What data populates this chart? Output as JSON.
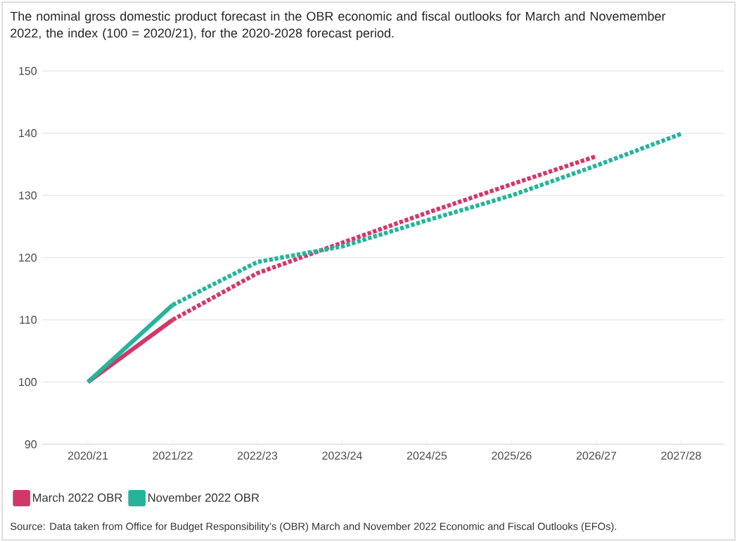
{
  "chart_data": {
    "type": "line",
    "title": "The nominal gross domestic product forecast in the OBR economic and fiscal outlooks for March and Novemember 2022, the index (100 = 2020/21), for the 2020-2028 forecast period.",
    "categories": [
      "2020/21",
      "2021/22",
      "2022/23",
      "2023/24",
      "2024/25",
      "2025/26",
      "2026/27",
      "2027/28"
    ],
    "series": [
      {
        "name": "March 2022 OBR",
        "color": "#d1386a",
        "line_style": "solid",
        "values": [
          100,
          110,
          null,
          null,
          null,
          null,
          null,
          null
        ]
      },
      {
        "color": "#d1386a",
        "line_style": "dotted",
        "values": [
          null,
          110,
          117.5,
          122.4,
          127.2,
          131.8,
          136.3,
          null
        ]
      },
      {
        "name": "November 2022 OBR",
        "color": "#26b39b",
        "line_style": "solid",
        "values": [
          100,
          112.4,
          null,
          null,
          null,
          null,
          null,
          null
        ]
      },
      {
        "color": "#26b39b",
        "line_style": "dotted",
        "values": [
          null,
          112.4,
          119.3,
          121.8,
          126.0,
          130.0,
          134.8,
          139.9
        ]
      }
    ],
    "ylim": [
      90,
      150
    ],
    "yticks": [
      90,
      100,
      110,
      120,
      130,
      140,
      150
    ],
    "grid": "y",
    "legend": "bottom left",
    "marker": "none",
    "annotations": [
      "Source: Data taken from Office for Budget Responsibility’s (OBR) March and November 2022 Economic and Fiscal Outlooks (EFOs)."
    ]
  }
}
